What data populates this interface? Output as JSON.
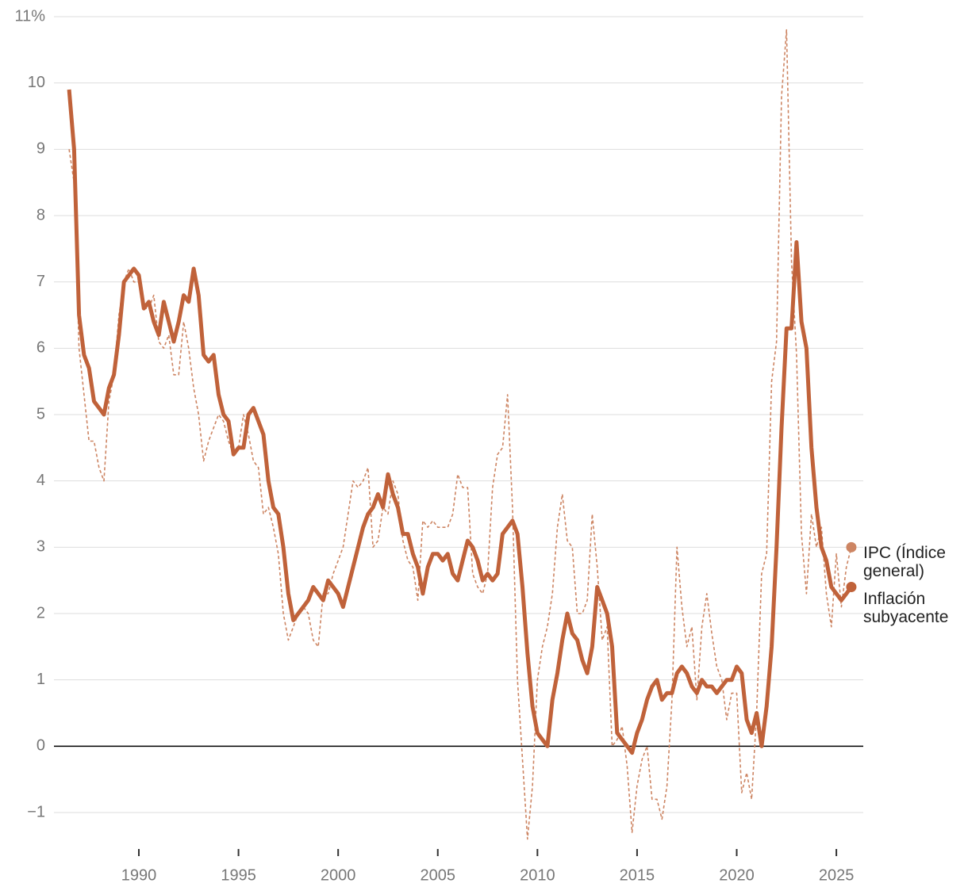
{
  "chart_data": {
    "type": "line",
    "x": [
      1986.5,
      1986.75,
      1987,
      1987.25,
      1987.5,
      1987.75,
      1988,
      1988.25,
      1988.5,
      1988.75,
      1989,
      1989.25,
      1989.5,
      1989.75,
      1990,
      1990.25,
      1990.5,
      1990.75,
      1991,
      1991.25,
      1991.5,
      1991.75,
      1992,
      1992.25,
      1992.5,
      1992.75,
      1993,
      1993.25,
      1993.5,
      1993.75,
      1994,
      1994.25,
      1994.5,
      1994.75,
      1995,
      1995.25,
      1995.5,
      1995.75,
      1996,
      1996.25,
      1996.5,
      1996.75,
      1997,
      1997.25,
      1997.5,
      1997.75,
      1998,
      1998.25,
      1998.5,
      1998.75,
      1999,
      1999.25,
      1999.5,
      1999.75,
      2000,
      2000.25,
      2000.5,
      2000.75,
      2001,
      2001.25,
      2001.5,
      2001.75,
      2002,
      2002.25,
      2002.5,
      2002.75,
      2003,
      2003.25,
      2003.5,
      2003.75,
      2004,
      2004.25,
      2004.5,
      2004.75,
      2005,
      2005.25,
      2005.5,
      2005.75,
      2006,
      2006.25,
      2006.5,
      2006.75,
      2007,
      2007.25,
      2007.5,
      2007.75,
      2008,
      2008.25,
      2008.5,
      2008.75,
      2009,
      2009.25,
      2009.5,
      2009.75,
      2010,
      2010.25,
      2010.5,
      2010.75,
      2011,
      2011.25,
      2011.5,
      2011.75,
      2012,
      2012.25,
      2012.5,
      2012.75,
      2013,
      2013.25,
      2013.5,
      2013.75,
      2014,
      2014.25,
      2014.5,
      2014.75,
      2015,
      2015.25,
      2015.5,
      2015.75,
      2016,
      2016.25,
      2016.5,
      2016.75,
      2017,
      2017.25,
      2017.5,
      2017.75,
      2018,
      2018.25,
      2018.5,
      2018.75,
      2019,
      2019.25,
      2019.5,
      2019.75,
      2020,
      2020.25,
      2020.5,
      2020.75,
      2021,
      2021.25,
      2021.5,
      2021.75,
      2022,
      2022.25,
      2022.5,
      2022.75,
      2023,
      2023.25,
      2023.5,
      2023.75,
      2024,
      2024.25,
      2024.5,
      2024.75,
      2025,
      2025.25,
      2025.5,
      2025.75
    ],
    "series": [
      {
        "name": "IPC (Índice general)",
        "color": "#cd8563",
        "dashed": true,
        "values": [
          9.0,
          8.5,
          6.0,
          5.3,
          4.6,
          4.6,
          4.2,
          4.0,
          5.2,
          5.6,
          6.5,
          7.0,
          7.2,
          7.0,
          7.0,
          6.6,
          6.6,
          6.8,
          6.1,
          6.0,
          6.2,
          5.6,
          5.6,
          6.4,
          6.0,
          5.4,
          5.0,
          4.3,
          4.6,
          4.8,
          5.0,
          4.9,
          4.6,
          4.4,
          4.5,
          5.0,
          4.7,
          4.3,
          4.2,
          3.5,
          3.6,
          3.3,
          2.9,
          2.0,
          1.6,
          1.8,
          2.0,
          2.1,
          2.0,
          1.6,
          1.5,
          2.3,
          2.3,
          2.6,
          2.8,
          3.0,
          3.5,
          4.0,
          3.9,
          4.0,
          4.2,
          3.0,
          3.1,
          3.6,
          3.5,
          4.0,
          3.8,
          3.1,
          2.8,
          2.7,
          2.2,
          3.4,
          3.3,
          3.4,
          3.3,
          3.3,
          3.3,
          3.5,
          4.1,
          3.9,
          3.9,
          2.6,
          2.4,
          2.3,
          2.6,
          3.9,
          4.4,
          4.5,
          5.3,
          3.6,
          1.0,
          -0.2,
          -1.4,
          -0.6,
          1.0,
          1.5,
          1.8,
          2.3,
          3.3,
          3.8,
          3.1,
          3.0,
          2.0,
          2.0,
          2.2,
          3.5,
          2.7,
          1.6,
          1.8,
          0.0,
          0.1,
          0.3,
          -0.3,
          -1.3,
          -0.6,
          -0.2,
          0.0,
          -0.8,
          -0.8,
          -1.1,
          -0.6,
          0.7,
          3.0,
          2.1,
          1.5,
          1.8,
          0.7,
          1.8,
          2.3,
          1.7,
          1.2,
          1.0,
          0.4,
          0.8,
          0.8,
          -0.7,
          -0.4,
          -0.8,
          0.5,
          2.6,
          2.9,
          5.5,
          6.1,
          9.8,
          10.8,
          7.3,
          5.9,
          3.2,
          2.3,
          3.5,
          3.0,
          3.3,
          2.3,
          1.8,
          2.9,
          2.1,
          2.7,
          3.0
        ]
      },
      {
        "name": "Inflación subyacente",
        "color": "#c0623a",
        "dashed": false,
        "values": [
          9.9,
          9.0,
          6.5,
          5.9,
          5.7,
          5.2,
          5.1,
          5.0,
          5.4,
          5.6,
          6.2,
          7.0,
          7.1,
          7.2,
          7.1,
          6.6,
          6.7,
          6.4,
          6.2,
          6.7,
          6.4,
          6.1,
          6.4,
          6.8,
          6.7,
          7.2,
          6.8,
          5.9,
          5.8,
          5.9,
          5.3,
          5.0,
          4.9,
          4.4,
          4.5,
          4.5,
          5.0,
          5.1,
          4.9,
          4.7,
          4.0,
          3.6,
          3.5,
          3.0,
          2.3,
          1.9,
          2.0,
          2.1,
          2.2,
          2.4,
          2.3,
          2.2,
          2.5,
          2.4,
          2.3,
          2.1,
          2.4,
          2.7,
          3.0,
          3.3,
          3.5,
          3.6,
          3.8,
          3.6,
          4.1,
          3.8,
          3.6,
          3.2,
          3.2,
          2.9,
          2.7,
          2.3,
          2.7,
          2.9,
          2.9,
          2.8,
          2.9,
          2.6,
          2.5,
          2.8,
          3.1,
          3.0,
          2.8,
          2.5,
          2.6,
          2.5,
          2.6,
          3.2,
          3.3,
          3.4,
          3.2,
          2.4,
          1.4,
          0.6,
          0.2,
          0.1,
          0.0,
          0.7,
          1.1,
          1.6,
          2.0,
          1.7,
          1.6,
          1.3,
          1.1,
          1.5,
          2.4,
          2.2,
          2.0,
          1.5,
          0.2,
          0.1,
          0.0,
          -0.1,
          0.2,
          0.4,
          0.7,
          0.9,
          1.0,
          0.7,
          0.8,
          0.8,
          1.1,
          1.2,
          1.1,
          0.9,
          0.8,
          1.0,
          0.9,
          0.9,
          0.8,
          0.9,
          1.0,
          1.0,
          1.2,
          1.1,
          0.4,
          0.2,
          0.5,
          0.0,
          0.6,
          1.5,
          3.0,
          4.8,
          6.3,
          6.3,
          7.6,
          6.4,
          6.0,
          4.5,
          3.6,
          3.0,
          2.8,
          2.4,
          2.3,
          2.2,
          2.3,
          2.4
        ]
      }
    ],
    "xlim": [
      1985.74,
      2026.35
    ],
    "xticks": [
      1990,
      1995,
      2000,
      2005,
      2010,
      2015,
      2020,
      2025
    ],
    "ylim": [
      -1.55,
      11
    ],
    "yticks": [
      {
        "value": -1,
        "label": "−1"
      },
      0,
      1,
      2,
      3,
      4,
      5,
      6,
      7,
      8,
      9,
      10,
      {
        "value": 11,
        "label": "11%"
      }
    ],
    "grid": true
  }
}
